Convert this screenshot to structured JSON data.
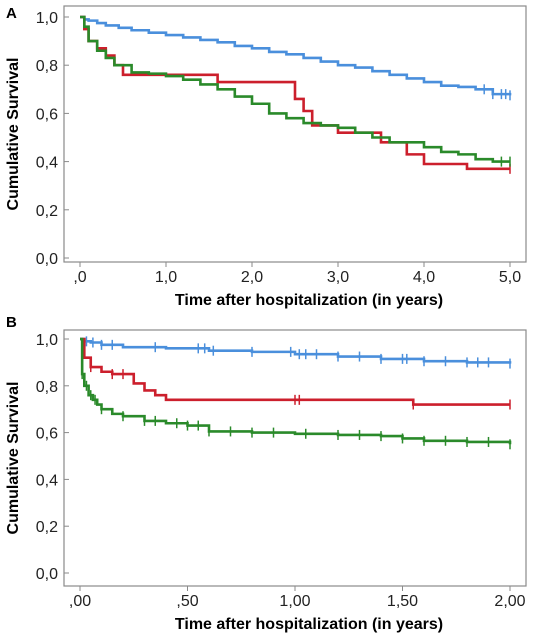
{
  "chart_data": [
    {
      "type": "line",
      "panel_label": "A",
      "xlabel": "Time after hospitalization (in years)",
      "ylabel": "Cumulative Survival",
      "xlim": [
        0,
        5
      ],
      "ylim": [
        0,
        1
      ],
      "x_ticks": [
        0,
        1,
        2,
        3,
        4,
        5
      ],
      "x_tick_labels": [
        ",0",
        "1,0",
        "2,0",
        "3,0",
        "4,0",
        "5,0"
      ],
      "y_ticks": [
        0,
        0.2,
        0.4,
        0.6,
        0.8,
        1.0
      ],
      "y_tick_labels": [
        "0,0",
        "0,2",
        "0,4",
        "0,6",
        "0,8",
        "1,0"
      ],
      "grid": false,
      "series": [
        {
          "color": "#4a8fdc",
          "x": [
            0,
            0.05,
            0.1,
            0.2,
            0.3,
            0.45,
            0.6,
            0.8,
            1.0,
            1.2,
            1.4,
            1.6,
            1.8,
            2.0,
            2.2,
            2.4,
            2.6,
            2.8,
            3.0,
            3.2,
            3.4,
            3.6,
            3.8,
            4.0,
            4.2,
            4.4,
            4.6,
            4.8,
            5.0
          ],
          "y": [
            1.0,
            0.99,
            0.985,
            0.975,
            0.965,
            0.955,
            0.945,
            0.935,
            0.925,
            0.915,
            0.905,
            0.895,
            0.88,
            0.87,
            0.855,
            0.845,
            0.83,
            0.815,
            0.8,
            0.79,
            0.775,
            0.76,
            0.745,
            0.73,
            0.715,
            0.71,
            0.7,
            0.68,
            0.675
          ],
          "censored_x": [
            4.7,
            4.8,
            4.9,
            4.95,
            5.0
          ]
        },
        {
          "color": "#cc1f2c",
          "x": [
            0,
            0.05,
            0.1,
            0.2,
            0.3,
            0.4,
            0.5,
            1.0,
            1.5,
            1.6,
            2.0,
            2.5,
            2.6,
            2.7,
            3.0,
            3.5,
            3.8,
            4.0,
            4.5,
            5.0
          ],
          "y": [
            1.0,
            0.95,
            0.9,
            0.87,
            0.84,
            0.8,
            0.76,
            0.76,
            0.76,
            0.73,
            0.73,
            0.66,
            0.61,
            0.55,
            0.52,
            0.48,
            0.43,
            0.39,
            0.37,
            0.37
          ],
          "censored_x": [
            5.0
          ]
        },
        {
          "color": "#2a8a2a",
          "x": [
            0,
            0.05,
            0.1,
            0.2,
            0.3,
            0.4,
            0.6,
            0.8,
            1.0,
            1.2,
            1.4,
            1.6,
            1.8,
            2.0,
            2.2,
            2.4,
            2.6,
            2.8,
            3.0,
            3.2,
            3.4,
            3.6,
            3.8,
            4.0,
            4.2,
            4.4,
            4.6,
            4.8,
            5.0
          ],
          "y": [
            1.0,
            0.96,
            0.9,
            0.86,
            0.83,
            0.8,
            0.77,
            0.765,
            0.755,
            0.74,
            0.72,
            0.7,
            0.67,
            0.64,
            0.6,
            0.58,
            0.56,
            0.55,
            0.54,
            0.52,
            0.5,
            0.48,
            0.48,
            0.46,
            0.44,
            0.43,
            0.41,
            0.4,
            0.4
          ],
          "censored_x": [
            4.9,
            5.0
          ]
        }
      ]
    },
    {
      "type": "line",
      "panel_label": "B",
      "xlabel": "Time after hospitalization (in years)",
      "ylabel": "Cumulative Survival",
      "xlim": [
        0,
        2
      ],
      "ylim": [
        0,
        1
      ],
      "x_ticks": [
        0,
        0.5,
        1.0,
        1.5,
        2.0
      ],
      "x_tick_labels": [
        ",00",
        ",50",
        "1,00",
        "1,50",
        "2,00"
      ],
      "y_ticks": [
        0,
        0.2,
        0.4,
        0.6,
        0.8,
        1.0
      ],
      "y_tick_labels": [
        "0,0",
        "0,2",
        "0,4",
        "0,6",
        "0,8",
        "1,0"
      ],
      "grid": false,
      "series": [
        {
          "color": "#4a8fdc",
          "x": [
            0,
            0.02,
            0.05,
            0.1,
            0.2,
            0.4,
            0.6,
            0.8,
            1.0,
            1.2,
            1.4,
            1.6,
            1.8,
            2.0
          ],
          "y": [
            1.0,
            0.99,
            0.985,
            0.975,
            0.965,
            0.96,
            0.95,
            0.945,
            0.935,
            0.925,
            0.915,
            0.905,
            0.9,
            0.895
          ],
          "censored_x": [
            0.03,
            0.06,
            0.1,
            0.15,
            0.35,
            0.55,
            0.58,
            0.62,
            0.8,
            0.98,
            1.02,
            1.05,
            1.1,
            1.2,
            1.3,
            1.4,
            1.5,
            1.52,
            1.6,
            1.7,
            1.8,
            1.85,
            1.9,
            2.0
          ]
        },
        {
          "color": "#cc1f2c",
          "x": [
            0,
            0.02,
            0.05,
            0.1,
            0.15,
            0.2,
            0.25,
            0.3,
            0.35,
            0.4,
            0.5,
            1.0,
            1.5,
            1.55,
            2.0
          ],
          "y": [
            1.0,
            0.92,
            0.88,
            0.86,
            0.85,
            0.85,
            0.81,
            0.78,
            0.76,
            0.74,
            0.74,
            0.74,
            0.74,
            0.72,
            0.72
          ],
          "censored_x": [
            0.05,
            0.15,
            0.2,
            1.0,
            1.02,
            1.55,
            2.0
          ]
        },
        {
          "color": "#2a8a2a",
          "x": [
            0,
            0.01,
            0.02,
            0.04,
            0.06,
            0.08,
            0.1,
            0.15,
            0.2,
            0.3,
            0.4,
            0.5,
            0.6,
            0.8,
            1.0,
            1.2,
            1.4,
            1.5,
            1.6,
            1.8,
            2.0
          ],
          "y": [
            1.0,
            0.85,
            0.8,
            0.76,
            0.74,
            0.72,
            0.7,
            0.68,
            0.67,
            0.65,
            0.64,
            0.63,
            0.605,
            0.6,
            0.595,
            0.59,
            0.585,
            0.575,
            0.565,
            0.56,
            0.55
          ],
          "censored_x": [
            0.01,
            0.03,
            0.05,
            0.07,
            0.1,
            0.2,
            0.3,
            0.35,
            0.45,
            0.5,
            0.55,
            0.6,
            0.7,
            0.8,
            0.9,
            1.05,
            1.2,
            1.3,
            1.4,
            1.5,
            1.6,
            1.7,
            1.8,
            1.9,
            2.0
          ]
        }
      ]
    }
  ]
}
